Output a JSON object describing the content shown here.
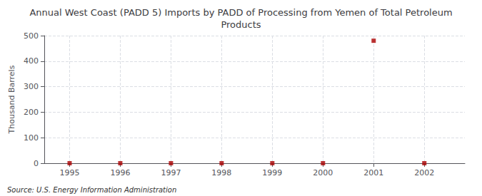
{
  "chart_data": {
    "type": "scatter",
    "title": "Annual West Coast (PADD 5) Imports by PADD of Processing from Yemen of Total Petroleum\nProducts",
    "ylabel": "Thousand Barrels",
    "source": "Source: U.S. Energy Information Administration",
    "x": [
      1995,
      1996,
      1997,
      1998,
      1999,
      2000,
      2001,
      2002
    ],
    "values": [
      0,
      0,
      0,
      0,
      0,
      0,
      480,
      0
    ],
    "color": "#aa0000",
    "marker": "square",
    "xlim": [
      1994.5,
      2002.8
    ],
    "xticks": [
      1995,
      1996,
      1997,
      1998,
      1999,
      2000,
      2001,
      2002
    ],
    "ylim": [
      0,
      500
    ],
    "yticks": [
      0,
      100,
      200,
      300,
      400,
      500
    ],
    "grid": true
  }
}
